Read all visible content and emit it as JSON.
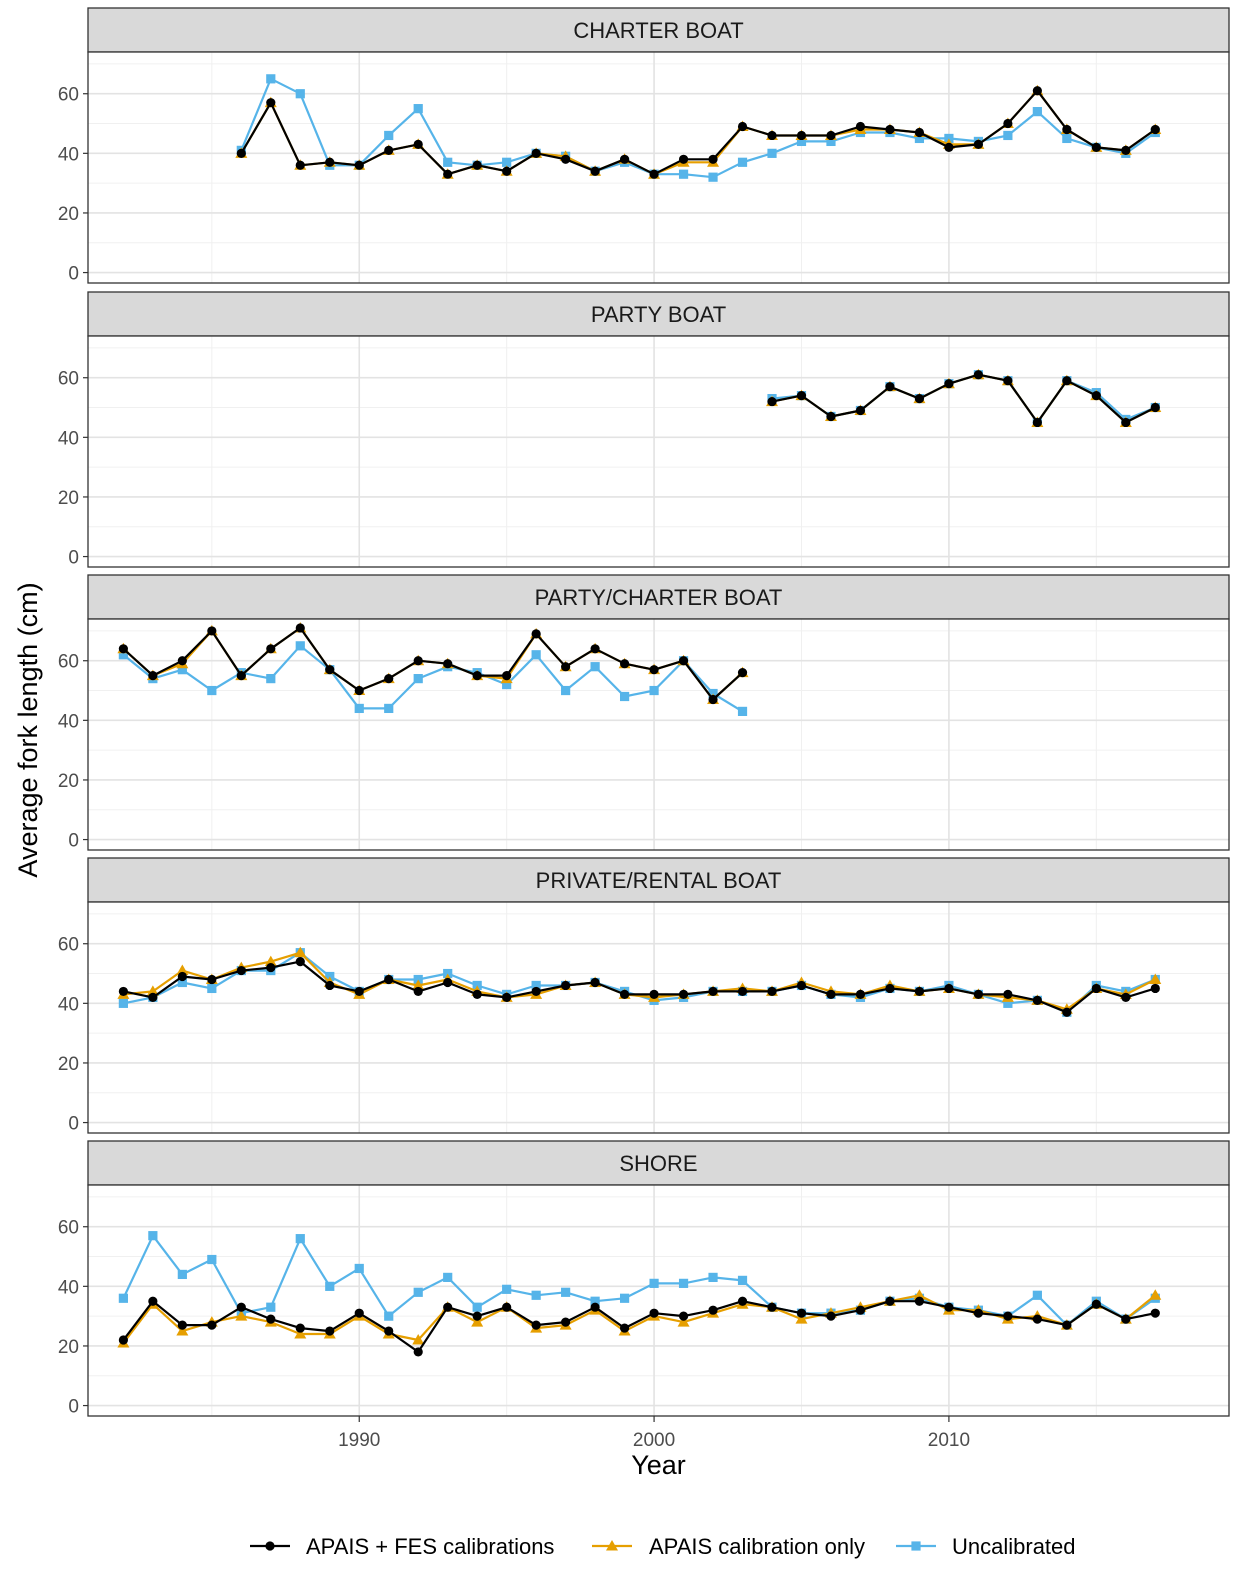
{
  "chart_data": {
    "type": "line",
    "xlabel": "Year",
    "ylabel": "Average fork length (cm)",
    "xlim": [
      1980.8,
      2019.5
    ],
    "ylim": [
      -3.5,
      74
    ],
    "x_ticks": [
      1990,
      2000,
      2010
    ],
    "x_tick_labels": [
      "1990",
      "2000",
      "2010"
    ],
    "x_minor": [
      1985,
      1995,
      2005,
      2015
    ],
    "y_ticks": [
      0,
      20,
      40,
      60
    ],
    "y_tick_labels": [
      "0",
      "20",
      "40",
      "60"
    ],
    "y_minor": [
      10,
      30,
      50,
      70
    ],
    "grid": true,
    "legend_position": "bottom",
    "series_styles": [
      {
        "name": "APAIS + FES calibrations",
        "color": "#000000",
        "marker": "circle"
      },
      {
        "name": "APAIS calibration only",
        "color": "#E69F00",
        "marker": "triangle"
      },
      {
        "name": "Uncalibrated",
        "color": "#56B4E9",
        "marker": "square"
      }
    ],
    "panels": [
      {
        "title": "CHARTER BOAT",
        "x": [
          1986,
          1987,
          1988,
          1989,
          1990,
          1991,
          1992,
          1993,
          1994,
          1995,
          1996,
          1997,
          1998,
          1999,
          2000,
          2001,
          2002,
          2003,
          2004,
          2005,
          2006,
          2007,
          2008,
          2009,
          2010,
          2011,
          2012,
          2013,
          2014,
          2015,
          2016,
          2017
        ],
        "series": [
          {
            "name": "Uncalibrated",
            "values": [
              41,
              65,
              60,
              36,
              36,
              46,
              55,
              37,
              36,
              37,
              40,
              39,
              34,
              37,
              33,
              33,
              32,
              37,
              40,
              44,
              44,
              47,
              47,
              45,
              45,
              44,
              46,
              54,
              45,
              42,
              40,
              47
            ]
          },
          {
            "name": "APAIS calibration only",
            "values": [
              40,
              57,
              36,
              37,
              36,
              41,
              43,
              33,
              36,
              34,
              40,
              39,
              34,
              38,
              33,
              37,
              37,
              49,
              46,
              46,
              46,
              48,
              48,
              47,
              43,
              43,
              50,
              61,
              48,
              42,
              41,
              48
            ]
          },
          {
            "name": "APAIS + FES calibrations",
            "values": [
              40,
              57,
              36,
              37,
              36,
              41,
              43,
              33,
              36,
              34,
              40,
              38,
              34,
              38,
              33,
              38,
              38,
              49,
              46,
              46,
              46,
              49,
              48,
              47,
              42,
              43,
              50,
              61,
              48,
              42,
              41,
              48
            ]
          }
        ]
      },
      {
        "title": "PARTY BOAT",
        "x": [
          2004,
          2005,
          2006,
          2007,
          2008,
          2009,
          2010,
          2011,
          2012,
          2013,
          2014,
          2015,
          2016,
          2017
        ],
        "series": [
          {
            "name": "Uncalibrated",
            "values": [
              53,
              54,
              47,
              49,
              57,
              53,
              58,
              61,
              59,
              45,
              59,
              55,
              46,
              50
            ]
          },
          {
            "name": "APAIS calibration only",
            "values": [
              52,
              54,
              47,
              49,
              57,
              53,
              58,
              61,
              59,
              45,
              59,
              54,
              45,
              50
            ]
          },
          {
            "name": "APAIS + FES calibrations",
            "values": [
              52,
              54,
              47,
              49,
              57,
              53,
              58,
              61,
              59,
              45,
              59,
              54,
              45,
              50
            ]
          }
        ]
      },
      {
        "title": "PARTY/CHARTER BOAT",
        "x": [
          1982,
          1983,
          1984,
          1985,
          1986,
          1987,
          1988,
          1989,
          1990,
          1991,
          1992,
          1993,
          1994,
          1995,
          1996,
          1997,
          1998,
          1999,
          2000,
          2001,
          2002,
          2003
        ],
        "series": [
          {
            "name": "Uncalibrated",
            "values": [
              62,
              54,
              57,
              50,
              56,
              54,
              65,
              57,
              44,
              44,
              54,
              58,
              56,
              52,
              62,
              50,
              58,
              48,
              50,
              60,
              49,
              43
            ]
          },
          {
            "name": "APAIS calibration only",
            "values": [
              64,
              55,
              59,
              70,
              55,
              64,
              71,
              57,
              50,
              54,
              60,
              59,
              55,
              54,
              69,
              58,
              64,
              59,
              57,
              60,
              47,
              56
            ]
          },
          {
            "name": "APAIS + FES calibrations",
            "values": [
              64,
              55,
              60,
              70,
              55,
              64,
              71,
              57,
              50,
              54,
              60,
              59,
              55,
              55,
              69,
              58,
              64,
              59,
              57,
              60,
              47,
              56
            ]
          }
        ]
      },
      {
        "title": "PRIVATE/RENTAL BOAT",
        "x": [
          1982,
          1983,
          1984,
          1985,
          1986,
          1987,
          1988,
          1989,
          1990,
          1991,
          1992,
          1993,
          1994,
          1995,
          1996,
          1997,
          1998,
          1999,
          2000,
          2001,
          2002,
          2003,
          2004,
          2005,
          2006,
          2007,
          2008,
          2009,
          2010,
          2011,
          2012,
          2013,
          2014,
          2015,
          2016,
          2017
        ],
        "series": [
          {
            "name": "Uncalibrated",
            "values": [
              40,
              42,
              47,
              45,
              51,
              51,
              57,
              49,
              44,
              48,
              48,
              50,
              46,
              43,
              46,
              46,
              47,
              44,
              41,
              42,
              44,
              44,
              44,
              46,
              43,
              42,
              45,
              44,
              46,
              43,
              40,
              41,
              37,
              46,
              44,
              48
            ]
          },
          {
            "name": "APAIS calibration only",
            "values": [
              43,
              44,
              51,
              48,
              52,
              54,
              57,
              47,
              43,
              48,
              46,
              48,
              44,
              42,
              43,
              46,
              47,
              43,
              42,
              43,
              44,
              45,
              44,
              47,
              44,
              43,
              46,
              44,
              45,
              43,
              42,
              41,
              38,
              45,
              43,
              48
            ]
          },
          {
            "name": "APAIS + FES calibrations",
            "values": [
              44,
              42,
              49,
              48,
              51,
              52,
              54,
              46,
              44,
              48,
              44,
              47,
              43,
              42,
              44,
              46,
              47,
              43,
              43,
              43,
              44,
              44,
              44,
              46,
              43,
              43,
              45,
              44,
              45,
              43,
              43,
              41,
              37,
              45,
              42,
              45
            ]
          }
        ]
      },
      {
        "title": "SHORE",
        "x": [
          1982,
          1983,
          1984,
          1985,
          1986,
          1987,
          1988,
          1989,
          1990,
          1991,
          1992,
          1993,
          1994,
          1995,
          1996,
          1997,
          1998,
          1999,
          2000,
          2001,
          2002,
          2003,
          2004,
          2005,
          2006,
          2007,
          2008,
          2009,
          2010,
          2011,
          2012,
          2013,
          2014,
          2015,
          2016,
          2017
        ],
        "series": [
          {
            "name": "Uncalibrated",
            "values": [
              36,
              57,
              44,
              49,
              31,
              33,
              56,
              40,
              46,
              30,
              38,
              43,
              33,
              39,
              37,
              38,
              35,
              36,
              41,
              41,
              43,
              42,
              33,
              31,
              31,
              32,
              35,
              36,
              33,
              32,
              30,
              37,
              27,
              35,
              29,
              36
            ]
          },
          {
            "name": "APAIS calibration only",
            "values": [
              21,
              34,
              25,
              28,
              30,
              28,
              24,
              24,
              30,
              24,
              22,
              33,
              28,
              33,
              26,
              27,
              32,
              25,
              30,
              28,
              31,
              34,
              33,
              29,
              31,
              33,
              35,
              37,
              32,
              32,
              29,
              30,
              27,
              34,
              29,
              37
            ]
          },
          {
            "name": "APAIS + FES calibrations",
            "values": [
              22,
              35,
              27,
              27,
              33,
              29,
              26,
              25,
              31,
              25,
              18,
              33,
              30,
              33,
              27,
              28,
              33,
              26,
              31,
              30,
              32,
              35,
              33,
              31,
              30,
              32,
              35,
              35,
              33,
              31,
              30,
              29,
              27,
              34,
              29,
              31
            ]
          }
        ]
      }
    ]
  }
}
